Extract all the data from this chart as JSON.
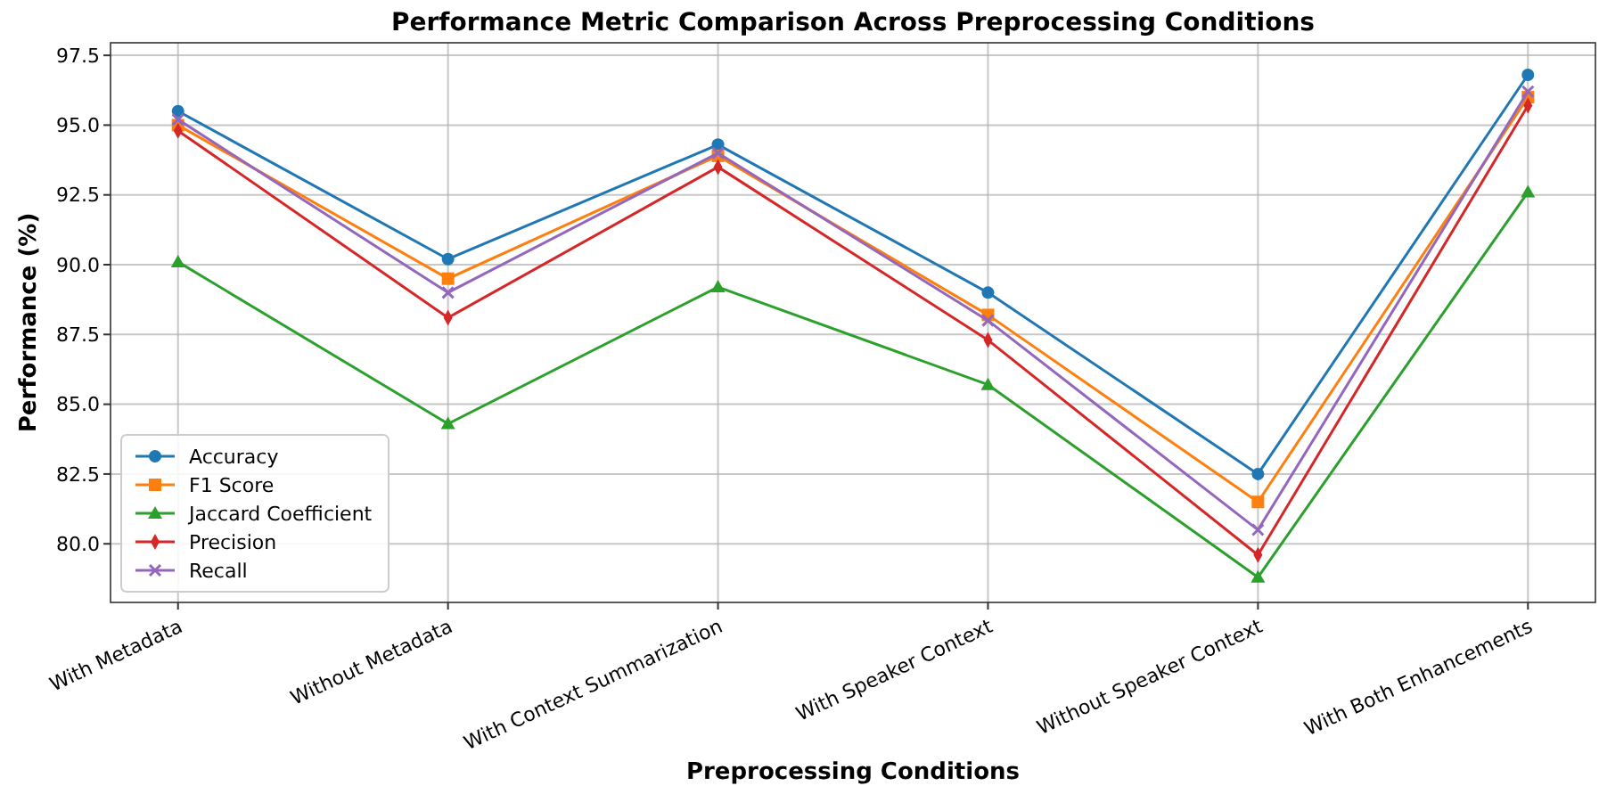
{
  "chart_data": {
    "type": "line",
    "title": "Performance Metric Comparison Across Preprocessing Conditions",
    "xlabel": "Preprocessing Conditions",
    "ylabel": "Performance (%)",
    "categories": [
      "With Metadata",
      "Without Metadata",
      "With Context Summarization",
      "With Speaker Context",
      "Without Speaker Context",
      "With Both Enhancements"
    ],
    "series": [
      {
        "name": "Accuracy",
        "color": "#1f77b4",
        "marker": "circle",
        "values": [
          95.5,
          90.2,
          94.3,
          89.0,
          82.5,
          96.8
        ]
      },
      {
        "name": "F1 Score",
        "color": "#ff7f0e",
        "marker": "square",
        "values": [
          95.0,
          89.5,
          93.9,
          88.2,
          81.5,
          96.0
        ]
      },
      {
        "name": "Jaccard Coefficient",
        "color": "#2ca02c",
        "marker": "triangle",
        "values": [
          90.1,
          84.3,
          89.2,
          85.7,
          78.8,
          92.6
        ]
      },
      {
        "name": "Precision",
        "color": "#d62728",
        "marker": "diamond",
        "values": [
          94.8,
          88.1,
          93.5,
          87.3,
          79.6,
          95.7
        ]
      },
      {
        "name": "Recall",
        "color": "#9467bd",
        "marker": "cross",
        "values": [
          95.2,
          89.0,
          94.0,
          88.0,
          80.5,
          96.2
        ]
      }
    ],
    "ylim": [
      77.9,
      97.95
    ],
    "yticks": [
      {
        "value": 80,
        "label": "80.0"
      },
      82.5,
      {
        "value": 85,
        "label": "85.0"
      },
      87.5,
      {
        "value": 90,
        "label": "90.0"
      },
      92.5,
      {
        "value": 95,
        "label": "95.0"
      },
      97.5
    ],
    "grid": true,
    "legend": "bottom left"
  }
}
